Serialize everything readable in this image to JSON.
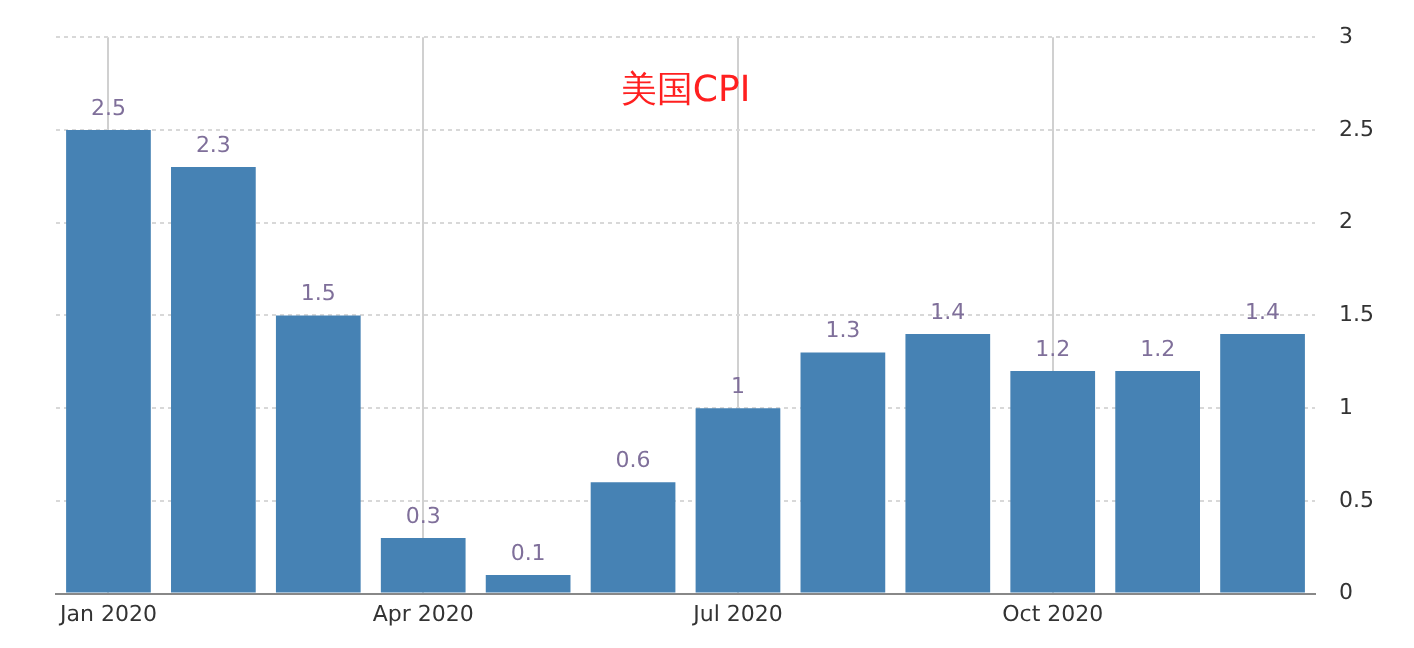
{
  "chart_data": {
    "type": "bar",
    "title": "美国CPI",
    "categories": [
      "Jan 2020",
      null,
      null,
      "Apr 2020",
      null,
      null,
      "Jul 2020",
      null,
      null,
      "Oct 2020",
      null,
      null
    ],
    "values": [
      2.5,
      2.3,
      1.5,
      0.3,
      0.1,
      0.6,
      1,
      1.3,
      1.4,
      1.2,
      1.2,
      1.4
    ],
    "color": "#4682b4",
    "ylim": [
      0,
      3
    ],
    "yticks": [
      0,
      0.5,
      1,
      1.5,
      2,
      2.5,
      3
    ],
    "grid": true,
    "data_labels": true
  }
}
